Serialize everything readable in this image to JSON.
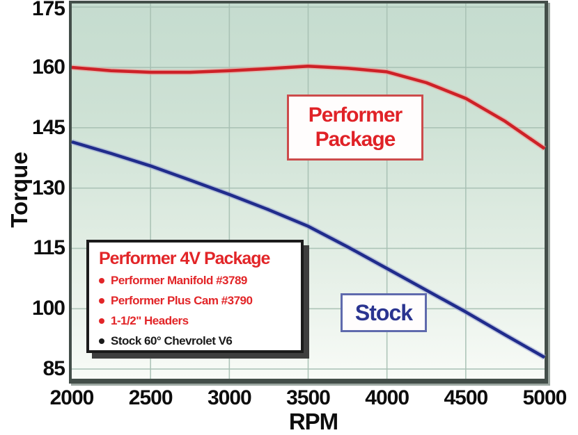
{
  "axes": {
    "y_title": "Torque",
    "x_title": "RPM"
  },
  "callouts": {
    "performer_line1": "Performer",
    "performer_line2": "Package",
    "stock": "Stock"
  },
  "legend": {
    "title": "Performer 4V Package",
    "items": [
      {
        "text": "Performer Manifold #3789",
        "color": "#e22528"
      },
      {
        "text": "Performer Plus Cam #3790",
        "color": "#e22528"
      },
      {
        "text": "1-1/2\" Headers",
        "color": "#e22528"
      },
      {
        "text": "Stock 60° Chevrolet V6",
        "color": "#1a1a1a"
      }
    ]
  },
  "colors": {
    "performer_line": "#ce2127",
    "performer_halo": "#f09a96",
    "stock_line": "#202c8c",
    "stock_halo": "#97a1d2",
    "gridline": "#a7c0b3",
    "tick_text": "#0d0d0d"
  },
  "chart_data": {
    "type": "line",
    "title": "",
    "xlabel": "RPM",
    "ylabel": "Torque",
    "x": [
      2000,
      2250,
      2500,
      2750,
      3000,
      3250,
      3500,
      3750,
      4000,
      4250,
      4500,
      4750,
      5000
    ],
    "series": [
      {
        "name": "Performer Package",
        "values": [
          160,
          159.2,
          158.8,
          158.8,
          159.2,
          159.7,
          160.3,
          159.8,
          158.9,
          156.2,
          152.3,
          146.6,
          139.8
        ]
      },
      {
        "name": "Stock",
        "values": [
          141.5,
          138.6,
          135.5,
          132.0,
          128.4,
          124.6,
          120.5,
          115.4,
          110.0,
          104.6,
          99.2,
          93.5,
          87.9
        ]
      }
    ],
    "xticks": [
      2000,
      2500,
      3000,
      3500,
      4000,
      4500,
      5000
    ],
    "yticks": [
      175,
      160,
      145,
      130,
      115,
      100,
      85
    ],
    "xlim": [
      2000,
      5000
    ],
    "ylim": [
      82.6,
      175.9
    ],
    "grid": true,
    "legend_position": "inside-lower-left"
  }
}
